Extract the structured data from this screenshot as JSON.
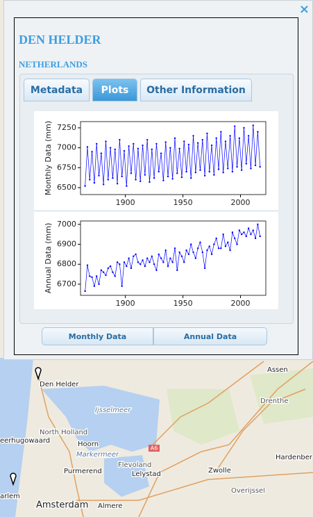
{
  "header": {
    "title": "DEN HELDER",
    "subtitle": "NETHERLANDS"
  },
  "close": "×",
  "tabs": [
    "Metadata",
    "Plots",
    "Other Information"
  ],
  "buttons": [
    "Monthly Data",
    "Annual Data"
  ],
  "map_labels": [
    "Den Helder",
    "Assen",
    "Ijsselmeer",
    "Drenthe",
    "North Holland",
    "Hoorn",
    "eerhugowaard",
    "Markermeer",
    "A6",
    "Flevoland",
    "Zwolle",
    "Hardenber",
    "Purmerend",
    "Lelystad",
    "arlem",
    "Amsterdam",
    "Almere",
    "Overijssel"
  ],
  "chart_data": [
    {
      "type": "line",
      "ylabel": "Monthly Data (mm)",
      "color": "#0000ff",
      "x": [
        1865,
        1867,
        1869,
        1871,
        1873,
        1875,
        1877,
        1879,
        1881,
        1883,
        1885,
        1887,
        1889,
        1891,
        1893,
        1895,
        1897,
        1899,
        1901,
        1903,
        1905,
        1907,
        1909,
        1911,
        1913,
        1915,
        1917,
        1919,
        1921,
        1923,
        1925,
        1927,
        1929,
        1931,
        1933,
        1935,
        1937,
        1939,
        1941,
        1943,
        1945,
        1947,
        1949,
        1951,
        1953,
        1955,
        1957,
        1959,
        1961,
        1963,
        1965,
        1967,
        1969,
        1971,
        1973,
        1975,
        1977,
        1979,
        1981,
        1983,
        1985,
        1987,
        1989,
        1991,
        1993,
        1995,
        1997,
        1999,
        2001,
        2003,
        2005,
        2007,
        2009,
        2011,
        2013,
        2015,
        2017
      ],
      "values": [
        6520,
        7010,
        6600,
        6950,
        6560,
        7050,
        6650,
        6930,
        6540,
        7080,
        6600,
        7000,
        6620,
        6980,
        6550,
        7100,
        6640,
        6960,
        6520,
        7020,
        6680,
        7050,
        6600,
        6990,
        6580,
        7030,
        6660,
        7100,
        6570,
        6980,
        6620,
        7050,
        6700,
        6930,
        6590,
        7070,
        6640,
        7000,
        6610,
        7120,
        6680,
        6990,
        6630,
        7080,
        6700,
        7040,
        6620,
        7150,
        6690,
        7060,
        6720,
        7100,
        6650,
        7180,
        6700,
        7030,
        6660,
        7120,
        6730,
        7200,
        6690,
        7080,
        6740,
        7150,
        6700,
        7270,
        6760,
        7120,
        6720,
        7250,
        6800,
        7150,
        6740,
        7280,
        6780,
        7200,
        6760
      ],
      "xlim": [
        1861,
        2022
      ],
      "xticks": [
        1900,
        1950,
        2000
      ],
      "ylim": [
        6413,
        7328
      ],
      "yticks": [
        6500,
        6750,
        7000,
        7250
      ]
    },
    {
      "type": "line",
      "ylabel": "Annual Data (mm)",
      "color": "#0000ff",
      "x": [
        1865,
        1867,
        1869,
        1871,
        1873,
        1875,
        1877,
        1879,
        1881,
        1883,
        1885,
        1887,
        1889,
        1891,
        1893,
        1895,
        1897,
        1899,
        1901,
        1903,
        1905,
        1907,
        1909,
        1911,
        1913,
        1915,
        1917,
        1919,
        1921,
        1923,
        1925,
        1927,
        1929,
        1931,
        1933,
        1935,
        1937,
        1939,
        1941,
        1943,
        1945,
        1947,
        1949,
        1951,
        1953,
        1955,
        1957,
        1959,
        1961,
        1963,
        1965,
        1967,
        1969,
        1971,
        1973,
        1975,
        1977,
        1979,
        1981,
        1983,
        1985,
        1987,
        1989,
        1991,
        1993,
        1995,
        1997,
        1999,
        2001,
        2003,
        2005,
        2007,
        2009,
        2011,
        2013,
        2015,
        2017
      ],
      "values": [
        6665,
        6795,
        6740,
        6735,
        6690,
        6740,
        6700,
        6770,
        6760,
        6745,
        6780,
        6790,
        6760,
        6740,
        6810,
        6800,
        6690,
        6810,
        6790,
        6830,
        6780,
        6840,
        6850,
        6810,
        6800,
        6820,
        6790,
        6830,
        6810,
        6840,
        6800,
        6770,
        6850,
        6830,
        6810,
        6870,
        6790,
        6830,
        6810,
        6880,
        6770,
        6860,
        6840,
        6810,
        6870,
        6850,
        6900,
        6860,
        6830,
        6880,
        6910,
        6860,
        6780,
        6870,
        6890,
        6850,
        6900,
        6930,
        6880,
        6880,
        6950,
        6890,
        6910,
        6870,
        6960,
        6930,
        6900,
        6970,
        6950,
        6960,
        6940,
        6980,
        6950,
        6970,
        6930,
        7000,
        6940
      ],
      "xlim": [
        1861,
        2022
      ],
      "xticks": [
        1900,
        1950,
        2000
      ],
      "ylim": [
        6644,
        7017
      ],
      "yticks": [
        6700,
        6800,
        6900,
        7000
      ]
    }
  ]
}
